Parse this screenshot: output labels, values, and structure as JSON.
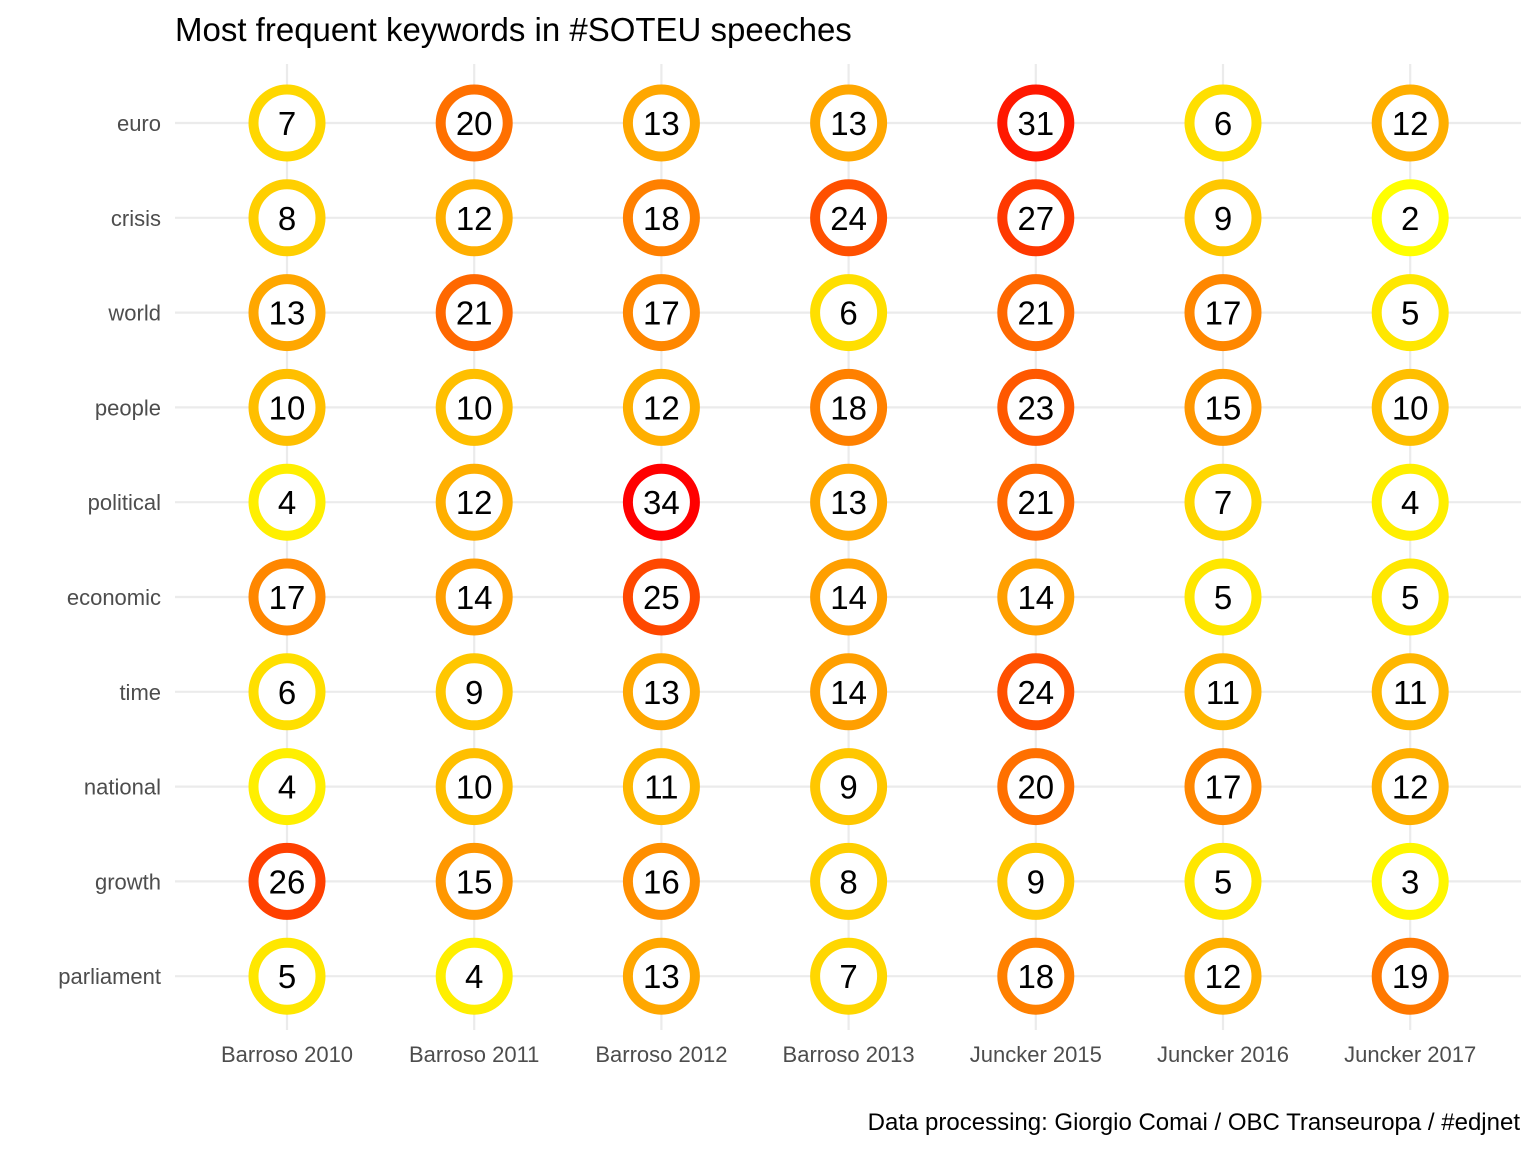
{
  "chart_data": {
    "type": "scatter",
    "title": "Most frequent keywords in #SOTEU speeches",
    "caption": "Data processing:  Giorgio Comai / OBC Transeuropa / #edjnet",
    "xlabel": "",
    "ylabel": "",
    "grid": true,
    "legend": "none",
    "categories": [
      "Barroso 2010",
      "Barroso 2011",
      "Barroso 2012",
      "Barroso 2013",
      "Juncker 2015",
      "Juncker 2016",
      "Juncker 2017"
    ],
    "keywords": [
      "euro",
      "crisis",
      "world",
      "people",
      "political",
      "economic",
      "time",
      "national",
      "growth",
      "parliament"
    ],
    "values": [
      [
        7,
        20,
        13,
        13,
        31,
        6,
        12
      ],
      [
        8,
        12,
        18,
        24,
        27,
        9,
        2
      ],
      [
        13,
        21,
        17,
        6,
        21,
        17,
        5
      ],
      [
        10,
        10,
        12,
        18,
        23,
        15,
        10
      ],
      [
        4,
        12,
        34,
        13,
        21,
        7,
        4
      ],
      [
        17,
        14,
        25,
        14,
        14,
        5,
        5
      ],
      [
        6,
        9,
        13,
        14,
        24,
        11,
        11
      ],
      [
        4,
        10,
        11,
        9,
        20,
        17,
        12
      ],
      [
        26,
        15,
        16,
        8,
        9,
        5,
        3
      ],
      [
        5,
        4,
        13,
        7,
        18,
        12,
        19
      ]
    ],
    "color_scale": {
      "low": "#ffff00",
      "high": "#ff0000"
    }
  }
}
